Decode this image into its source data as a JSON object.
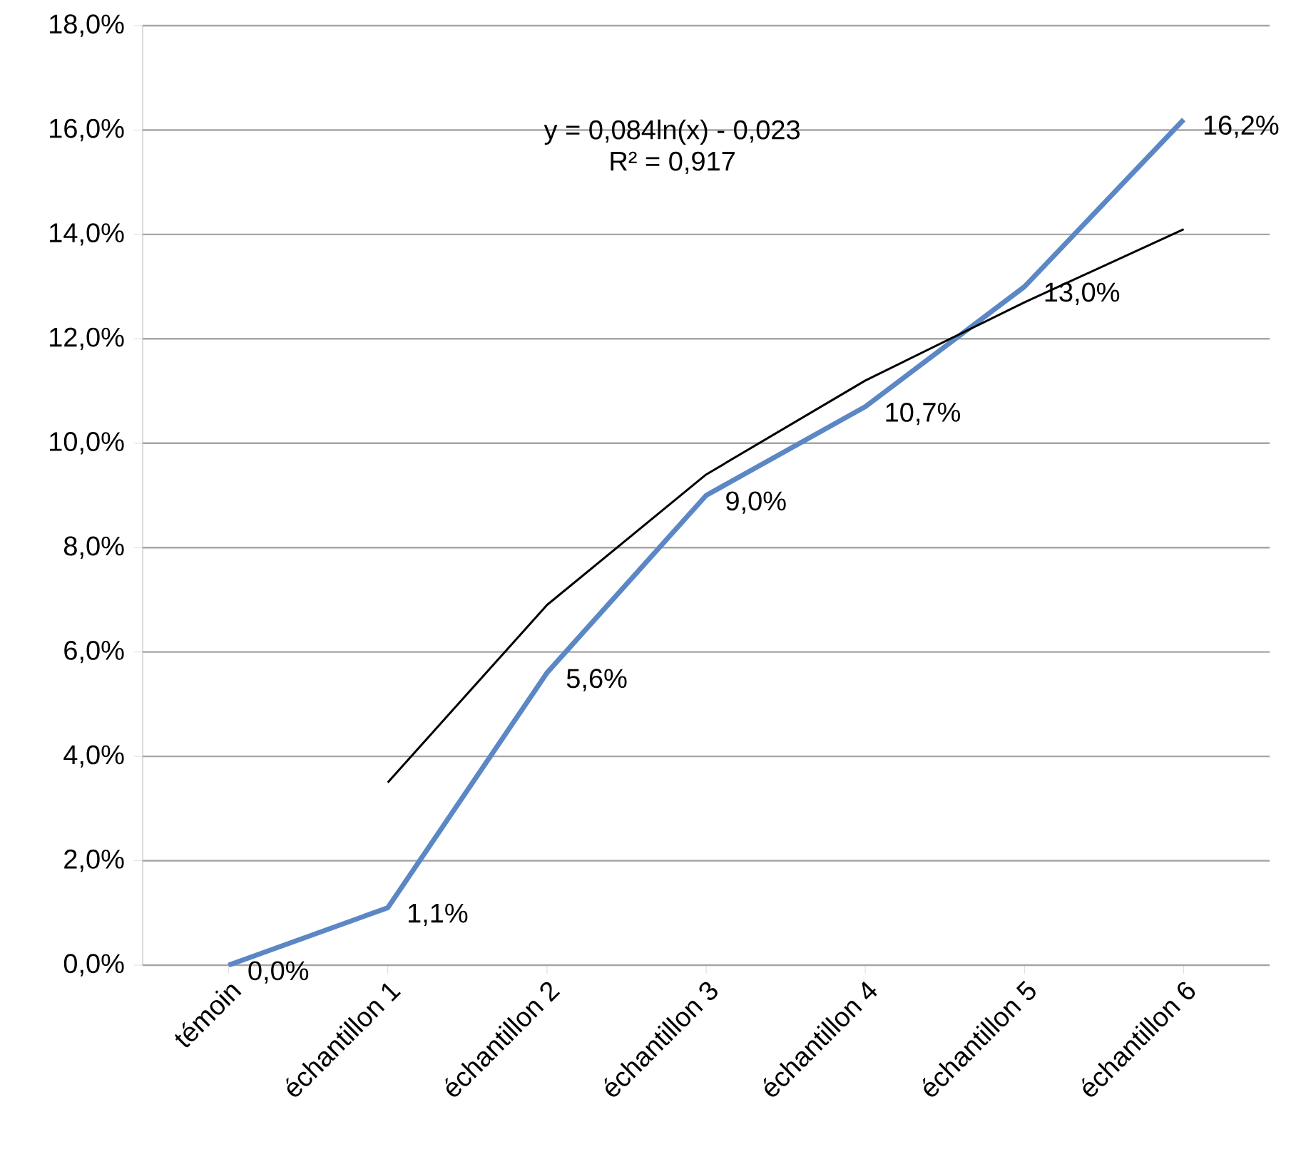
{
  "chart_data": {
    "type": "line",
    "categories": [
      "témoin",
      "échantillon 1",
      "échantillon 2",
      "échantillon 3",
      "échantillon 4",
      "échantillon 5",
      "échantillon 6"
    ],
    "series": [
      {
        "color": "#5b87c5",
        "values": [
          0,
          1.1,
          5.6,
          9.0,
          10.7,
          13.0,
          16.2
        ],
        "value_labels": [
          "0,0%",
          "1,1%",
          "5,6%",
          "9,0%",
          "10,7%",
          "13,0%",
          "16,2%"
        ]
      },
      {
        "type": "line",
        "color": "#000000",
        "values": [
          null,
          3.5,
          6.9,
          9.4,
          11.2,
          12.7,
          14.1
        ]
      }
    ],
    "ylim": [
      0,
      18
    ],
    "yticks": [
      {
        "value": 0,
        "label": "0,0%"
      },
      {
        "value": 2,
        "label": "2,0%"
      },
      {
        "value": 4,
        "label": "4,0%"
      },
      {
        "value": 6,
        "label": "6,0%"
      },
      {
        "value": 8,
        "label": "8,0%"
      },
      {
        "value": 10,
        "label": "10,0%"
      },
      {
        "value": 12,
        "label": "12,0%"
      },
      {
        "value": 14,
        "label": "14,0%"
      },
      {
        "value": 16,
        "label": "16,0%"
      },
      {
        "value": 18,
        "label": "18,0%"
      }
    ],
    "grid": "y",
    "marker": "none",
    "annotations": [
      "y = 0,084ln(x) - 0,023",
      "R² = 0,917"
    ]
  }
}
